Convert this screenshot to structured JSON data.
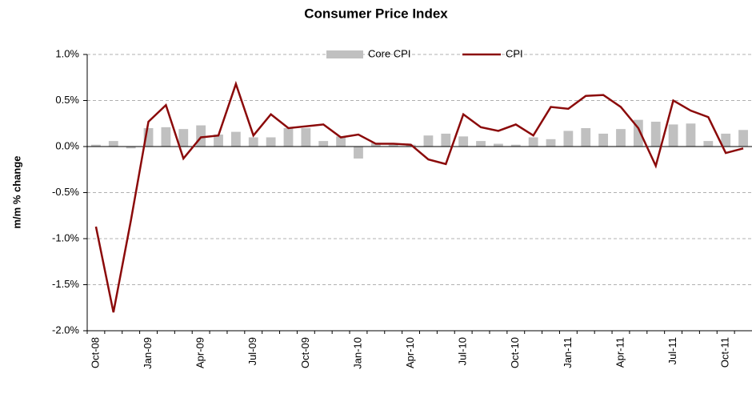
{
  "chart_data": {
    "type": "bar_line",
    "title": "Consumer Price Index",
    "y_label": "m/m % change",
    "categories": [
      "Oct-08",
      null,
      null,
      "Jan-09",
      null,
      null,
      "Apr-09",
      null,
      null,
      "Jul-09",
      null,
      null,
      "Oct-09",
      null,
      null,
      "Jan-10",
      null,
      null,
      "Apr-10",
      null,
      null,
      "Jul-10",
      null,
      null,
      "Oct-10",
      null,
      null,
      "Jan-11",
      null,
      null,
      "Apr-11",
      null,
      null,
      "Jul-11",
      null,
      null,
      "Oct-11",
      null
    ],
    "series": [
      {
        "name": "Core CPI",
        "kind": "bar",
        "color": "#c0c0c0",
        "values": [
          0.02,
          0.06,
          -0.02,
          0.2,
          0.21,
          0.19,
          0.23,
          0.13,
          0.16,
          0.1,
          0.1,
          0.2,
          0.2,
          0.06,
          0.11,
          -0.13,
          0.04,
          0.02,
          0.02,
          0.12,
          0.14,
          0.11,
          0.06,
          0.03,
          0.02,
          0.1,
          0.08,
          0.17,
          0.2,
          0.14,
          0.19,
          0.29,
          0.27,
          0.24,
          0.25,
          0.06,
          0.14,
          0.18
        ]
      },
      {
        "name": "CPI",
        "kind": "line",
        "color": "#8b0a0a",
        "values": [
          -0.87,
          -1.8,
          -0.8,
          0.27,
          0.45,
          -0.13,
          0.1,
          0.12,
          0.68,
          0.12,
          0.35,
          0.2,
          0.22,
          0.24,
          0.1,
          0.13,
          0.03,
          0.03,
          0.02,
          -0.14,
          -0.19,
          0.35,
          0.21,
          0.17,
          0.24,
          0.12,
          0.43,
          0.41,
          0.55,
          0.56,
          0.43,
          0.2,
          -0.21,
          0.5,
          0.39,
          0.32,
          -0.07,
          -0.02
        ]
      }
    ],
    "ylim": [
      -2.0,
      1.0
    ],
    "yticks": [
      {
        "value": -2.0,
        "label": "-2.0%"
      },
      {
        "value": -1.5,
        "label": "-1.5%"
      },
      {
        "value": -1.0,
        "label": "-1.0%"
      },
      {
        "value": -0.5,
        "label": "-0.5%"
      },
      {
        "value": 0,
        "label": "0.0%"
      },
      {
        "value": 0.5,
        "label": "0.5%"
      },
      {
        "value": 1.0,
        "label": "1.0%"
      }
    ],
    "grid": true,
    "legend": "top"
  }
}
